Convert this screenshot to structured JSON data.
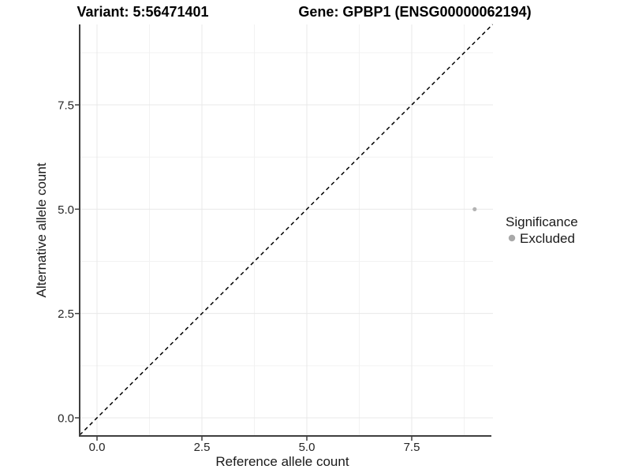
{
  "chart_data": {
    "type": "scatter",
    "title_left": "Variant: 5:56471401",
    "title_right": "Gene: GPBP1 (ENSG00000062194)",
    "xlabel": "Reference allele count",
    "ylabel": "Alternative allele count",
    "x_tick_labels": [
      "0.0",
      "2.5",
      "5.0",
      "7.5"
    ],
    "x_tick_values": [
      0,
      2.5,
      5,
      7.5
    ],
    "y_tick_labels": [
      "0.0",
      "2.5",
      "5.0",
      "7.5"
    ],
    "y_tick_values": [
      0,
      2.5,
      5,
      7.5
    ],
    "x_minor_gridlines": [
      1.25,
      3.75,
      6.25,
      8.75
    ],
    "y_minor_gridlines": [
      1.25,
      3.75,
      6.25,
      8.75
    ],
    "xlim": [
      -0.41,
      9.43
    ],
    "ylim": [
      -0.43,
      9.43
    ],
    "grid": true,
    "identity_line": {
      "style": "dashed",
      "equation": "y = x",
      "color": "#000000"
    },
    "series": [
      {
        "name": "Excluded",
        "color": "#b3b3b3",
        "points": [
          {
            "x": 9,
            "y": 5
          }
        ]
      }
    ],
    "legend": {
      "position": "right",
      "title": "Significance",
      "entries": [
        {
          "label": "Excluded",
          "color": "#a9a9a9"
        }
      ]
    }
  }
}
